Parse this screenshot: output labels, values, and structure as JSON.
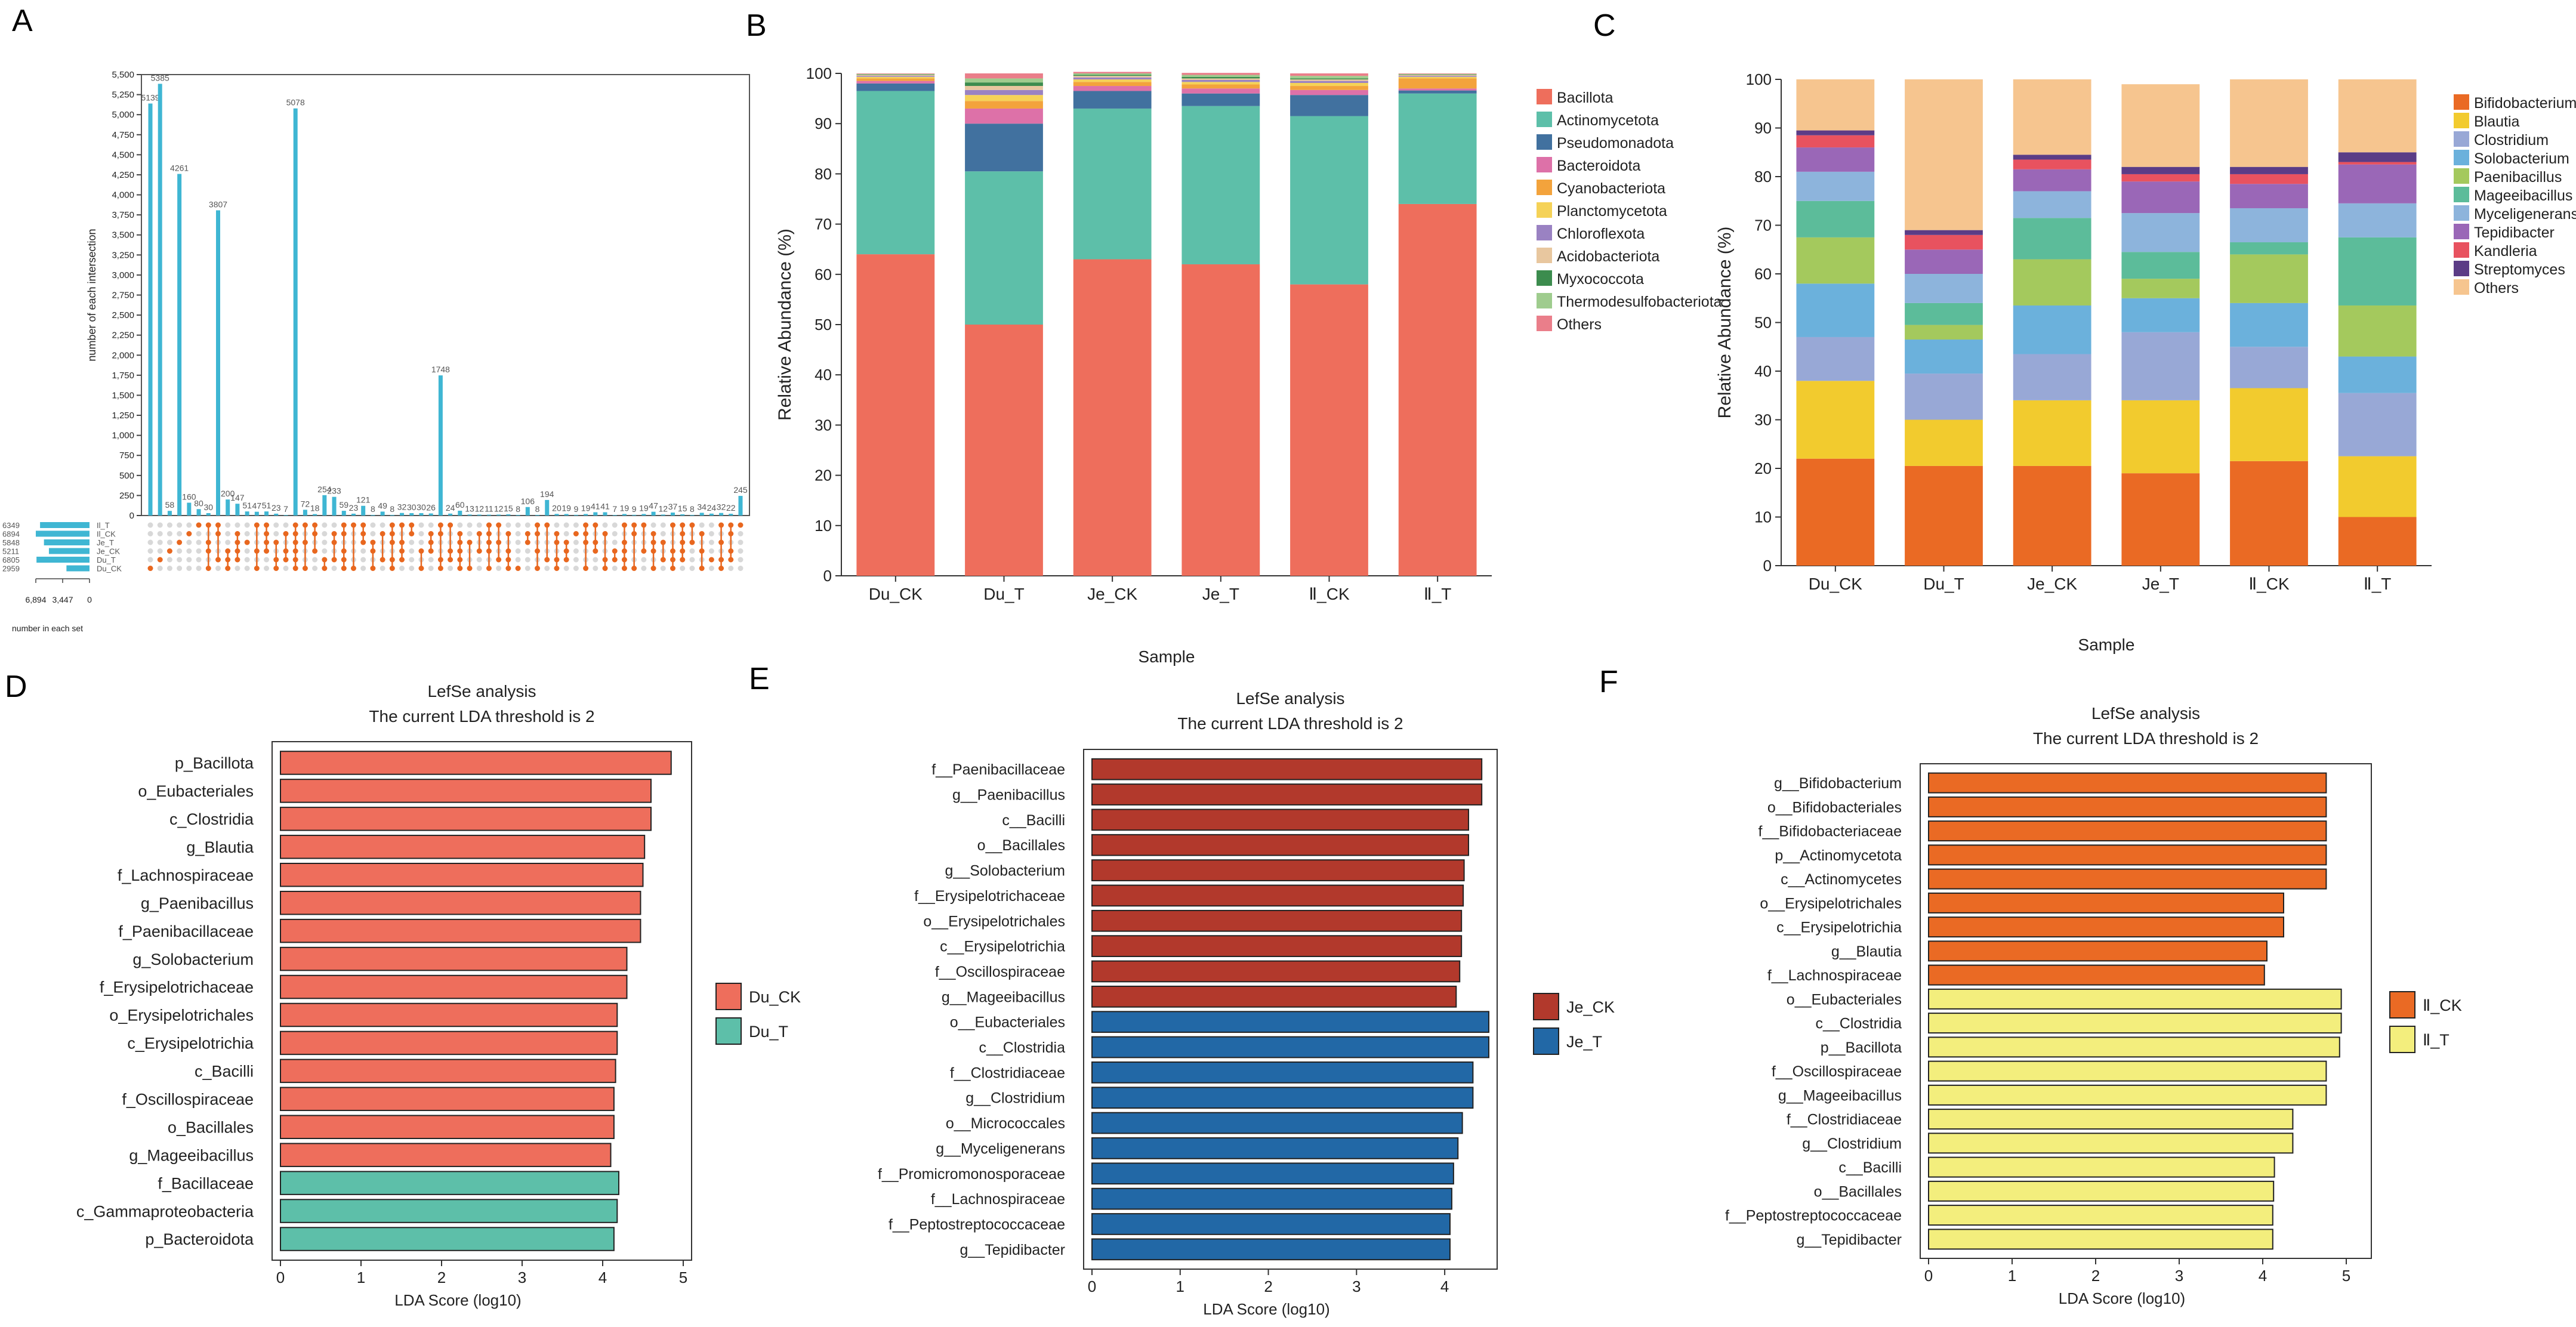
{
  "panel_labels": [
    "A",
    "B",
    "C",
    "D",
    "E",
    "F"
  ],
  "chart_data": [
    {
      "id": "A",
      "type": "bar",
      "subtype": "upset",
      "ylabel": "number of each intersection",
      "ylim": [
        0,
        5500
      ],
      "yticks": [
        0,
        250,
        500,
        750,
        1000,
        1250,
        1500,
        1750,
        2000,
        2250,
        2500,
        2750,
        3000,
        3250,
        3500,
        3750,
        4000,
        4250,
        4500,
        4750,
        5000,
        5250,
        5500
      ],
      "ytick_labels": [
        "0",
        "250",
        "500",
        "750",
        "1,000",
        "1,250",
        "1,500",
        "1,750",
        "2,000",
        "2,250",
        "2,500",
        "2,750",
        "3,000",
        "3,250",
        "3,500",
        "3,750",
        "4,000",
        "4,250",
        "4,500",
        "4,750",
        "5,000",
        "5,250",
        "5,500"
      ],
      "values": [
        5139,
        5385,
        58,
        4261,
        160,
        80,
        30,
        3807,
        200,
        147,
        51,
        47,
        51,
        23,
        7,
        5078,
        72,
        18,
        254,
        233,
        59,
        23,
        121,
        8,
        49,
        8,
        32,
        30,
        30,
        26,
        1748,
        24,
        60,
        13,
        12,
        11,
        12,
        15,
        8,
        106,
        8,
        194,
        20,
        19,
        9,
        19,
        41,
        41,
        7,
        19,
        9,
        19,
        47,
        12,
        37,
        15,
        8,
        34,
        24,
        32,
        22,
        245
      ],
      "value_labels": [
        "5139",
        "5385",
        "58",
        "4261",
        "160",
        "80",
        "30",
        "3807",
        "200",
        "147",
        "51",
        "47",
        "51",
        "23",
        "7",
        "5078",
        "72",
        "18",
        "254",
        "233",
        "59",
        "23",
        "121",
        "8",
        "49",
        "8",
        "32",
        "30",
        "30",
        "26",
        "1748",
        "24",
        "60",
        "13",
        "12",
        "11",
        "12",
        "15",
        "8",
        "106",
        "8",
        "194",
        "20",
        "19",
        "9",
        "19",
        "41",
        "41",
        "7",
        "19",
        "9",
        "19",
        "47",
        "12",
        "37",
        "15",
        "8",
        "34",
        "24",
        "32",
        "22",
        "245"
      ],
      "sets": [
        "Il_T",
        "Il_CK",
        "Je_T",
        "Je_CK",
        "Du_T",
        "Du_CK"
      ],
      "set_sizes": [
        6349,
        6894,
        5848,
        5211,
        6805,
        2959
      ],
      "set_axis_ticks": [
        "6,894",
        "3,447",
        "0"
      ],
      "set_axis_label": "number in each set",
      "bar_color": "#3fb6d3",
      "dot_color": "#e8671f"
    },
    {
      "id": "B",
      "type": "bar",
      "subtype": "stacked-percent",
      "xlabel": "Sample",
      "ylabel": "Relative Abundance (%)",
      "ylim": [
        0,
        100
      ],
      "yticks": [
        "0",
        "10",
        "20",
        "30",
        "40",
        "50",
        "60",
        "70",
        "80",
        "90",
        "100"
      ],
      "categories": [
        "Du_CK",
        "Du_T",
        "Je_CK",
        "Je_T",
        "Ⅱ_CK",
        "Ⅱ_T"
      ],
      "series": [
        {
          "name": "Bacillota",
          "color": "#ee6e5c",
          "values": [
            64,
            50,
            63,
            62,
            58,
            74
          ]
        },
        {
          "name": "Actinomycetota",
          "color": "#5dbfa9",
          "values": [
            32.5,
            30.5,
            30,
            31.5,
            33.5,
            22
          ]
        },
        {
          "name": "Pseudomonadota",
          "color": "#41719f",
          "values": [
            1.5,
            9.5,
            3.5,
            2.5,
            4.2,
            0.6
          ]
        },
        {
          "name": "Bacteroidota",
          "color": "#dd71a8",
          "values": [
            0.5,
            3,
            1,
            1,
            1,
            0.4
          ]
        },
        {
          "name": "Cyanobacteriota",
          "color": "#f3a33c",
          "values": [
            0.5,
            1.5,
            0.8,
            0.8,
            0.8,
            2
          ]
        },
        {
          "name": "Planctomycetota",
          "color": "#f5d257",
          "values": [
            0.3,
            1.2,
            0.5,
            0.5,
            0.6,
            0.3
          ]
        },
        {
          "name": "Chloroflexota",
          "color": "#9a82c2",
          "values": [
            0.2,
            1,
            0.4,
            0.4,
            0.4,
            0.2
          ]
        },
        {
          "name": "Acidobacteriota",
          "color": "#e8c79f",
          "values": [
            0.2,
            0.8,
            0.3,
            0.3,
            0.3,
            0.2
          ]
        },
        {
          "name": "Myxococcota",
          "color": "#3c8c4e",
          "values": [
            0.1,
            0.7,
            0.2,
            0.3,
            0.2,
            0.1
          ]
        },
        {
          "name": "Thermodesulfobacteriota",
          "color": "#9fcc8e",
          "values": [
            0.1,
            0.8,
            0.3,
            0.4,
            0.5,
            0.1
          ]
        },
        {
          "name": "Others",
          "color": "#ea7e8a",
          "values": [
            0.1,
            1,
            0.3,
            0.4,
            0.5,
            0.1
          ]
        }
      ]
    },
    {
      "id": "C",
      "type": "bar",
      "subtype": "stacked-percent",
      "xlabel": "Sample",
      "ylabel": "Relative Abundance (%)",
      "ylim": [
        0,
        100
      ],
      "yticks": [
        "0",
        "10",
        "20",
        "30",
        "40",
        "50",
        "60",
        "70",
        "80",
        "90",
        "100"
      ],
      "categories": [
        "Du_CK",
        "Du_T",
        "Je_CK",
        "Je_T",
        "Ⅱ_CK",
        "Ⅱ_T"
      ],
      "series": [
        {
          "name": "Bifidobacterium",
          "color": "#ea6a24",
          "values": [
            22,
            20.5,
            20.5,
            19,
            21.5,
            10
          ]
        },
        {
          "name": "Blautia",
          "color": "#f2cb2e",
          "values": [
            16,
            9.5,
            13.5,
            15,
            15,
            12.5
          ]
        },
        {
          "name": "Clostridium",
          "color": "#98a8d6",
          "values": [
            9,
            9.5,
            9.5,
            14,
            8.5,
            13
          ]
        },
        {
          "name": "Solobacterium",
          "color": "#6bb1dc",
          "values": [
            11,
            7,
            10,
            7,
            9,
            7.5
          ]
        },
        {
          "name": "Paenibacillus",
          "color": "#a4c95d",
          "values": [
            9.5,
            3,
            9.5,
            4,
            10,
            10.5
          ]
        },
        {
          "name": "Mageeibacillus",
          "color": "#5cbc9a",
          "values": [
            7.5,
            4.5,
            8.5,
            5.5,
            2.5,
            14
          ]
        },
        {
          "name": "Myceligenerans",
          "color": "#8db4dc",
          "values": [
            6,
            6,
            5.5,
            8,
            7,
            7
          ]
        },
        {
          "name": "Tepidibacter",
          "color": "#9a67b7",
          "values": [
            5,
            5,
            4.5,
            6.5,
            5,
            8
          ]
        },
        {
          "name": "Kandleria",
          "color": "#e8525f",
          "values": [
            2.5,
            3,
            2,
            1.5,
            2,
            0.5
          ]
        },
        {
          "name": "Streptomyces",
          "color": "#5b3c86",
          "values": [
            1,
            1,
            1,
            1.5,
            1.5,
            2
          ]
        },
        {
          "name": "Others",
          "color": "#f6c58f",
          "values": [
            10.5,
            31,
            15.5,
            17,
            18,
            15
          ]
        }
      ]
    },
    {
      "id": "D",
      "type": "bar",
      "subtype": "horizontal-lefse",
      "title": "LefSe analysis",
      "subtitle": "The current LDA threshold is 2",
      "xlabel": "LDA Score (log10)",
      "xlim": [
        0,
        5
      ],
      "xticks": [
        "0",
        "1",
        "2",
        "3",
        "4",
        "5"
      ],
      "legend": [
        {
          "name": "Du_CK",
          "color": "#ee6e5c"
        },
        {
          "name": "Du_T",
          "color": "#5dbfa9"
        }
      ],
      "categories": [
        "p_Bacillota",
        "o_Eubacteriales",
        "c_Clostridia",
        "g_Blautia",
        "f_Lachnospiraceae",
        "g_Paenibacillus",
        "f_Paenibacillaceae",
        "g_Solobacterium",
        "f_Erysipelotrichaceae",
        "o_Erysipelotrichales",
        "c_Erysipelotrichia",
        "c_Bacilli",
        "f_Oscillospiraceae",
        "o_Bacillales",
        "g_Mageeibacillus",
        "f_Bacillaceae",
        "c_Gammaproteobacteria",
        "p_Bacteroidota"
      ],
      "values": [
        4.85,
        4.6,
        4.6,
        4.52,
        4.5,
        4.47,
        4.47,
        4.3,
        4.3,
        4.18,
        4.18,
        4.16,
        4.14,
        4.14,
        4.1,
        4.2,
        4.18,
        4.14
      ],
      "groups": [
        0,
        0,
        0,
        0,
        0,
        0,
        0,
        0,
        0,
        0,
        0,
        0,
        0,
        0,
        0,
        1,
        1,
        1
      ]
    },
    {
      "id": "E",
      "type": "bar",
      "subtype": "horizontal-lefse",
      "title": "LefSe analysis",
      "subtitle": "The current LDA threshold is 2",
      "xlabel": "LDA Score (log10)",
      "xlim": [
        0,
        4.5
      ],
      "xticks": [
        "0",
        "1",
        "2",
        "3",
        "4"
      ],
      "legend": [
        {
          "name": "Je_CK",
          "color": "#b2392c"
        },
        {
          "name": "Je_T",
          "color": "#2268a6"
        }
      ],
      "categories": [
        "f__Paenibacillaceae",
        "g__Paenibacillus",
        "c__Bacilli",
        "o__Bacillales",
        "g__Solobacterium",
        "f__Erysipelotrichaceae",
        "o__Erysipelotrichales",
        "c__Erysipelotrichia",
        "f__Oscillospiraceae",
        "g__Mageeibacillus",
        "o__Eubacteriales",
        "c__Clostridia",
        "f__Clostridiaceae",
        "g__Clostridium",
        "o__Micrococcales",
        "g__Myceligenerans",
        "f__Promicromonosporaceae",
        "f__Lachnospiraceae",
        "f__Peptostreptococcaceae",
        "g__Tepidibacter"
      ],
      "values": [
        4.42,
        4.42,
        4.27,
        4.27,
        4.22,
        4.21,
        4.19,
        4.19,
        4.17,
        4.13,
        4.5,
        4.5,
        4.32,
        4.32,
        4.2,
        4.15,
        4.1,
        4.08,
        4.06,
        4.06
      ],
      "groups": [
        0,
        0,
        0,
        0,
        0,
        0,
        0,
        0,
        0,
        0,
        1,
        1,
        1,
        1,
        1,
        1,
        1,
        1,
        1,
        1
      ]
    },
    {
      "id": "F",
      "type": "bar",
      "subtype": "horizontal-lefse",
      "title": "LefSe analysis",
      "subtitle": "The current LDA threshold is 2",
      "xlabel": "LDA Score (log10)",
      "xlim": [
        0,
        5.2
      ],
      "xticks": [
        "0",
        "1",
        "2",
        "3",
        "4",
        "5"
      ],
      "legend": [
        {
          "name": "Ⅱ_CK",
          "color": "#ea6a24"
        },
        {
          "name": "Ⅱ_T",
          "color": "#f3ee7d"
        }
      ],
      "categories": [
        "g__Bifidobacterium",
        "o__Bifidobacteriales",
        "f__Bifidobacteriaceae",
        "p__Actinomycetota",
        "c__Actinomycetes",
        "o__Erysipelotrichales",
        "c__Erysipelotrichia",
        "g__Blautia",
        "f__Lachnospiraceae",
        "o__Eubacteriales",
        "c__Clostridia",
        "p__Bacillota",
        "f__Oscillospiraceae",
        "g__Mageeibacillus",
        "f__Clostridiaceae",
        "g__Clostridium",
        "c__Bacilli",
        "o__Bacillales",
        "f__Peptostreptococcaceae",
        "g__Tepidibacter"
      ],
      "values": [
        4.76,
        4.76,
        4.76,
        4.76,
        4.76,
        4.25,
        4.25,
        4.05,
        4.02,
        4.94,
        4.94,
        4.92,
        4.76,
        4.76,
        4.36,
        4.36,
        4.14,
        4.13,
        4.12,
        4.12
      ],
      "groups": [
        0,
        0,
        0,
        0,
        0,
        0,
        0,
        0,
        0,
        1,
        1,
        1,
        1,
        1,
        1,
        1,
        1,
        1,
        1,
        1
      ]
    }
  ]
}
